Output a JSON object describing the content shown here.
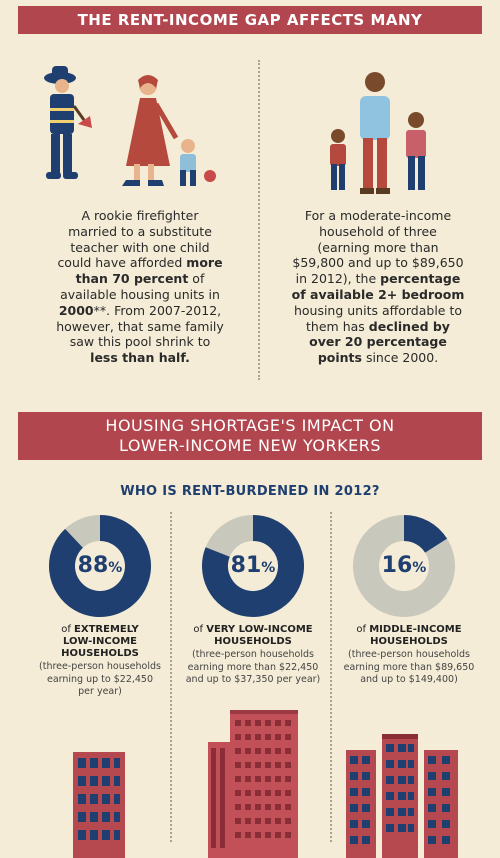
{
  "header": {
    "title": "THE RENT-INCOME GAP AFFECTS MANY"
  },
  "left_story": {
    "t1": "A rookie firefighter",
    "t2": "married to a substitute",
    "t3": "teacher with one child",
    "t4": "could have afforded",
    "t4b": "more",
    "t5": "than 70 percent",
    "t5b": "of",
    "t6": "available housing units in",
    "t7": "2000",
    "t7b": "**. From 2007-2012,",
    "t8": "however, that same family",
    "t9": "saw this pool shrink to",
    "t10": "less than half."
  },
  "right_story": {
    "t1": "For a moderate-income",
    "t2": "household of three",
    "t3": "(earning more than",
    "t4": "$59,800 and up to $89,650",
    "t5": "in 2012), the",
    "t5b": "percentage",
    "t6": "of available 2+ bedroom",
    "t7": "housing units affordable to",
    "t8": "them has",
    "t8b": "declined by",
    "t9": "over 20 percentage",
    "t10": "points",
    "t10b": "since 2000."
  },
  "section2": {
    "title_line1": "HOUSING SHORTAGE'S IMPACT ON",
    "title_line2": "LOWER-INCOME NEW YORKERS",
    "subtitle": "WHO IS RENT-BURDENED IN 2012?"
  },
  "chart_data": {
    "type": "pie",
    "title": "WHO IS RENT-BURDENED IN 2012?",
    "items": [
      {
        "value": 88,
        "pct_text": "88",
        "prefix": "of",
        "label1": "EXTREMELY",
        "label2": "LOW-INCOME",
        "label3": "HOUSEHOLDS",
        "note1": "(three-person households",
        "note2": "earning up to $22,450",
        "note3": "per year)"
      },
      {
        "value": 81,
        "pct_text": "81",
        "prefix": "of",
        "label1": "VERY LOW-INCOME",
        "label2": "HOUSEHOLDS",
        "label3": "",
        "note1": "(three-person households",
        "note2": "earning more than $22,450",
        "note3": "and up to $37,350 per year)"
      },
      {
        "value": 16,
        "pct_text": "16",
        "prefix": "of",
        "label1": "MIDDLE-INCOME",
        "label2": "HOUSEHOLDS",
        "label3": "",
        "note1": "(three-person households",
        "note2": "earning more than $89,650",
        "note3": "and up to $149,400)"
      }
    ],
    "percent_sign": "%"
  },
  "colors": {
    "banner": "#b2464e",
    "navy": "#1e3f6f",
    "ring_bg": "#c9c8bd",
    "background": "#f4ecd6"
  }
}
